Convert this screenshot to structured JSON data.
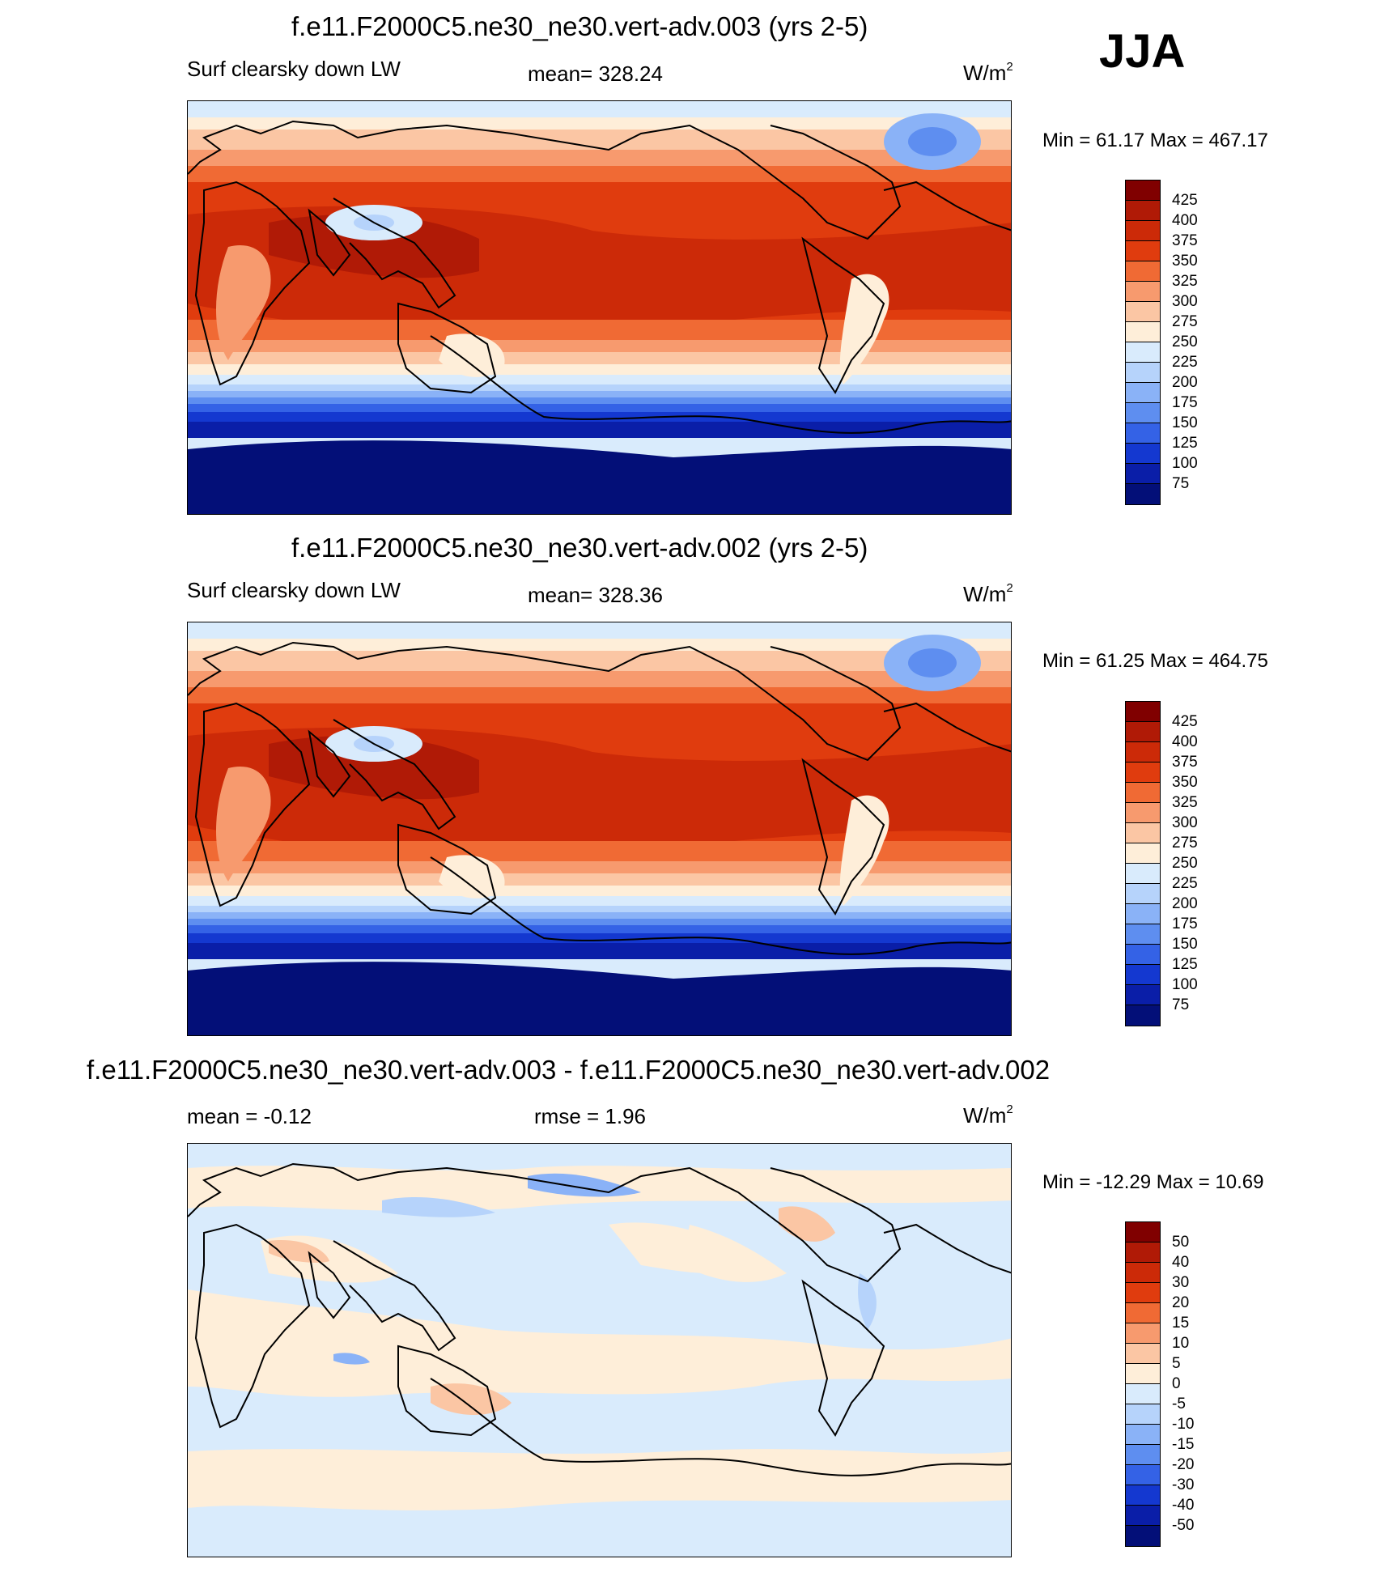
{
  "season": "JJA",
  "panels": [
    {
      "title": "f.e11.F2000C5.ne30_ne30.vert-adv.003 (yrs 2-5)",
      "field": "Surf clearsky down LW",
      "stat1": "mean= 328.24",
      "stat2": "",
      "units": "W/m",
      "units_sup": "2",
      "minmax": "Min =  61.17 Max = 467.17",
      "colorbar": {
        "colors": [
          "#800000",
          "#b01a06",
          "#cc2a08",
          "#e03c0e",
          "#f06a34",
          "#f79a6e",
          "#fbc6a4",
          "#feeed9",
          "#d9ebfc",
          "#b6d3fb",
          "#8ab2f7",
          "#5e8ef0",
          "#3462e6",
          "#1438d0",
          "#0a1ea8",
          "#030f78"
        ],
        "labels": [
          "425",
          "400",
          "375",
          "350",
          "325",
          "300",
          "275",
          "250",
          "225",
          "200",
          "175",
          "150",
          "125",
          "100",
          "75"
        ]
      }
    },
    {
      "title": "f.e11.F2000C5.ne30_ne30.vert-adv.002 (yrs 2-5)",
      "field": "Surf clearsky down LW",
      "stat1": "mean= 328.36",
      "stat2": "",
      "units": "W/m",
      "units_sup": "2",
      "minmax": "Min =  61.25 Max = 464.75",
      "colorbar": {
        "colors": [
          "#800000",
          "#b01a06",
          "#cc2a08",
          "#e03c0e",
          "#f06a34",
          "#f79a6e",
          "#fbc6a4",
          "#feeed9",
          "#d9ebfc",
          "#b6d3fb",
          "#8ab2f7",
          "#5e8ef0",
          "#3462e6",
          "#1438d0",
          "#0a1ea8",
          "#030f78"
        ],
        "labels": [
          "425",
          "400",
          "375",
          "350",
          "325",
          "300",
          "275",
          "250",
          "225",
          "200",
          "175",
          "150",
          "125",
          "100",
          "75"
        ]
      }
    },
    {
      "title": "f.e11.F2000C5.ne30_ne30.vert-adv.003 - f.e11.F2000C5.ne30_ne30.vert-adv.002",
      "field": "",
      "stat1": "mean =  -0.12",
      "stat2": "rmse =   1.96",
      "units": "W/m",
      "units_sup": "2",
      "minmax": "Min = -12.29 Max =  10.69",
      "colorbar": {
        "colors": [
          "#800000",
          "#b01a06",
          "#cc2a08",
          "#e03c0e",
          "#f06a34",
          "#f79a6e",
          "#fbc6a4",
          "#feeed9",
          "#d9ebfc",
          "#b6d3fb",
          "#8ab2f7",
          "#5e8ef0",
          "#3462e6",
          "#1438d0",
          "#0a1ea8",
          "#030f78"
        ],
        "labels": [
          "50",
          "40",
          "30",
          "20",
          "15",
          "10",
          "5",
          "0",
          "-5",
          "-10",
          "-15",
          "-20",
          "-30",
          "-40",
          "-50"
        ]
      }
    }
  ]
}
